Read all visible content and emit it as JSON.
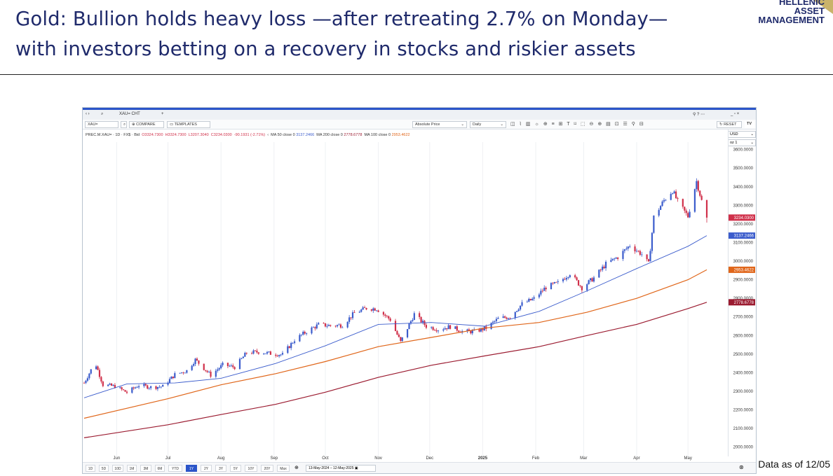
{
  "slide": {
    "title_line1": "Gold: Bullion holds heavy loss —after retreating 2.7% on Monday—",
    "title_line2": "with investors betting on a recovery in stocks and riskier assets",
    "logo_line1": "HELLENIC",
    "logo_line2": "ASSET",
    "logo_line3": "MANAGEMENT",
    "data_note": "Data as of 12/05"
  },
  "terminal": {
    "symbol_tab": "XAU= CHT",
    "symbol_input": "XAU=",
    "compare_label": "COMPARE",
    "templates_label": "TEMPLATES",
    "price_mode": "Absolute Price",
    "interval": "Daily",
    "reset_label": "RESET",
    "currency": "USD",
    "unit": "oz 1",
    "instrument": "PREC.M.XAU= · 1D · FX$ · Bid",
    "ohlc_o": "O3324.7300",
    "ohlc_h": "H3324.7300",
    "ohlc_l": "L3207.3040",
    "ohlc_c": "C3234.0300",
    "ohlc_chg": "-90.1931 (-2.71%)",
    "ma50_label": "MA 50 close 0",
    "ma50_value": "3137.2466",
    "ma200_label": "MA 200 close 0",
    "ma200_value": "2778.6778",
    "ma100_label": "MA 100 close 0",
    "ma100_value": "2953.4622",
    "range_buttons": [
      "1D",
      "5D",
      "10D",
      "1M",
      "3M",
      "6M",
      "YTD",
      "1Y",
      "2Y",
      "3Y",
      "5Y",
      "10Y",
      "20Y",
      "Max"
    ],
    "active_range": "1Y",
    "date_range": "13-May-2024 – 12-May-2025"
  },
  "chart_data": {
    "type": "candlestick",
    "title": "",
    "xlabel": "",
    "ylabel": "",
    "ylim": [
      1950,
      3640
    ],
    "y_ticks": [
      2000,
      2100,
      2200,
      2300,
      2400,
      2500,
      2600,
      2700,
      2800,
      2900,
      3000,
      3100,
      3200,
      3300,
      3400,
      3500,
      3600
    ],
    "y_tick_labels": [
      "2000.0000",
      "2100.0000",
      "2200.0000",
      "2300.0000",
      "2400.0000",
      "2500.0000",
      "2600.0000",
      "2700.0000",
      "2800.0000",
      "2900.0000",
      "3000.0000",
      "3100.0000",
      "3200.0000",
      "3300.0000",
      "3400.0000",
      "3500.0000",
      "3600.0000"
    ],
    "x_range": [
      "2024-05-13",
      "2025-05-12"
    ],
    "month_labels": [
      {
        "label": "Jun",
        "date": "2024-06-01"
      },
      {
        "label": "Jul",
        "date": "2024-07-01"
      },
      {
        "label": "Aug",
        "date": "2024-08-01"
      },
      {
        "label": "Sep",
        "date": "2024-09-01"
      },
      {
        "label": "Oct",
        "date": "2024-10-01"
      },
      {
        "label": "Nov",
        "date": "2024-11-01"
      },
      {
        "label": "Dec",
        "date": "2024-12-01"
      },
      {
        "label": "2025",
        "date": "2025-01-01"
      },
      {
        "label": "Feb",
        "date": "2025-02-01"
      },
      {
        "label": "Mar",
        "date": "2025-03-01"
      },
      {
        "label": "Apr",
        "date": "2025-04-01"
      },
      {
        "label": "May",
        "date": "2025-05-01"
      }
    ],
    "close": [
      {
        "date": "2024-05-13",
        "value": 2345
      },
      {
        "date": "2024-05-17",
        "value": 2415
      },
      {
        "date": "2024-05-20",
        "value": 2440
      },
      {
        "date": "2024-05-24",
        "value": 2335
      },
      {
        "date": "2024-05-31",
        "value": 2327
      },
      {
        "date": "2024-06-07",
        "value": 2294
      },
      {
        "date": "2024-06-14",
        "value": 2333
      },
      {
        "date": "2024-06-21",
        "value": 2322
      },
      {
        "date": "2024-06-28",
        "value": 2326
      },
      {
        "date": "2024-07-05",
        "value": 2390
      },
      {
        "date": "2024-07-12",
        "value": 2411
      },
      {
        "date": "2024-07-17",
        "value": 2470
      },
      {
        "date": "2024-07-26",
        "value": 2387
      },
      {
        "date": "2024-08-02",
        "value": 2442
      },
      {
        "date": "2024-08-09",
        "value": 2430
      },
      {
        "date": "2024-08-16",
        "value": 2507
      },
      {
        "date": "2024-08-23",
        "value": 2512
      },
      {
        "date": "2024-08-30",
        "value": 2503
      },
      {
        "date": "2024-09-06",
        "value": 2497
      },
      {
        "date": "2024-09-13",
        "value": 2577
      },
      {
        "date": "2024-09-20",
        "value": 2621
      },
      {
        "date": "2024-09-27",
        "value": 2658
      },
      {
        "date": "2024-10-04",
        "value": 2653
      },
      {
        "date": "2024-10-11",
        "value": 2656
      },
      {
        "date": "2024-10-18",
        "value": 2721
      },
      {
        "date": "2024-10-25",
        "value": 2747
      },
      {
        "date": "2024-10-31",
        "value": 2744
      },
      {
        "date": "2024-11-08",
        "value": 2685
      },
      {
        "date": "2024-11-14",
        "value": 2565
      },
      {
        "date": "2024-11-22",
        "value": 2715
      },
      {
        "date": "2024-11-29",
        "value": 2650
      },
      {
        "date": "2024-12-06",
        "value": 2633
      },
      {
        "date": "2024-12-13",
        "value": 2648
      },
      {
        "date": "2024-12-20",
        "value": 2622
      },
      {
        "date": "2024-12-27",
        "value": 2621
      },
      {
        "date": "2025-01-03",
        "value": 2640
      },
      {
        "date": "2025-01-10",
        "value": 2690
      },
      {
        "date": "2025-01-17",
        "value": 2702
      },
      {
        "date": "2025-01-24",
        "value": 2770
      },
      {
        "date": "2025-01-31",
        "value": 2798
      },
      {
        "date": "2025-02-07",
        "value": 2860
      },
      {
        "date": "2025-02-14",
        "value": 2882
      },
      {
        "date": "2025-02-21",
        "value": 2935
      },
      {
        "date": "2025-02-28",
        "value": 2857
      },
      {
        "date": "2025-03-07",
        "value": 2910
      },
      {
        "date": "2025-03-14",
        "value": 2984
      },
      {
        "date": "2025-03-21",
        "value": 3022
      },
      {
        "date": "2025-03-28",
        "value": 3085
      },
      {
        "date": "2025-04-04",
        "value": 3037
      },
      {
        "date": "2025-04-08",
        "value": 2985
      },
      {
        "date": "2025-04-11",
        "value": 3237
      },
      {
        "date": "2025-04-17",
        "value": 3327
      },
      {
        "date": "2025-04-22",
        "value": 3380
      },
      {
        "date": "2025-04-25",
        "value": 3319
      },
      {
        "date": "2025-05-01",
        "value": 3240
      },
      {
        "date": "2025-05-06",
        "value": 3430
      },
      {
        "date": "2025-05-09",
        "value": 3324
      },
      {
        "date": "2025-05-12",
        "value": 3234
      }
    ],
    "last_close": 3234.03,
    "last_high": 3324.73,
    "last_low": 3207.304,
    "series": [
      {
        "name": "MA 50 close 0",
        "color": "#3b5ccc",
        "values": [
          {
            "date": "2024-05-13",
            "value": 2265
          },
          {
            "date": "2024-06-07",
            "value": 2340
          },
          {
            "date": "2024-07-05",
            "value": 2345
          },
          {
            "date": "2024-08-01",
            "value": 2370
          },
          {
            "date": "2024-09-02",
            "value": 2450
          },
          {
            "date": "2024-10-01",
            "value": 2545
          },
          {
            "date": "2024-11-01",
            "value": 2660
          },
          {
            "date": "2024-12-02",
            "value": 2670
          },
          {
            "date": "2025-01-02",
            "value": 2650
          },
          {
            "date": "2025-02-03",
            "value": 2730
          },
          {
            "date": "2025-03-03",
            "value": 2840
          },
          {
            "date": "2025-04-01",
            "value": 2960
          },
          {
            "date": "2025-05-01",
            "value": 3080
          },
          {
            "date": "2025-05-12",
            "value": 3137.2466
          }
        ]
      },
      {
        "name": "MA 100 close 0",
        "color": "#e0661a",
        "values": [
          {
            "date": "2024-05-13",
            "value": 2155
          },
          {
            "date": "2024-07-01",
            "value": 2260
          },
          {
            "date": "2024-08-01",
            "value": 2335
          },
          {
            "date": "2024-09-02",
            "value": 2395
          },
          {
            "date": "2024-10-01",
            "value": 2460
          },
          {
            "date": "2024-11-01",
            "value": 2540
          },
          {
            "date": "2024-12-02",
            "value": 2590
          },
          {
            "date": "2025-01-02",
            "value": 2640
          },
          {
            "date": "2025-02-03",
            "value": 2670
          },
          {
            "date": "2025-03-03",
            "value": 2725
          },
          {
            "date": "2025-04-01",
            "value": 2800
          },
          {
            "date": "2025-05-01",
            "value": 2900
          },
          {
            "date": "2025-05-12",
            "value": 2953.4622
          }
        ]
      },
      {
        "name": "MA 200 close 0",
        "color": "#9b1b30",
        "values": [
          {
            "date": "2024-05-13",
            "value": 2050
          },
          {
            "date": "2024-07-01",
            "value": 2120
          },
          {
            "date": "2024-08-01",
            "value": 2175
          },
          {
            "date": "2024-09-02",
            "value": 2230
          },
          {
            "date": "2024-10-01",
            "value": 2295
          },
          {
            "date": "2024-11-01",
            "value": 2375
          },
          {
            "date": "2024-12-02",
            "value": 2440
          },
          {
            "date": "2025-01-02",
            "value": 2490
          },
          {
            "date": "2025-02-03",
            "value": 2540
          },
          {
            "date": "2025-03-03",
            "value": 2600
          },
          {
            "date": "2025-04-01",
            "value": 2660
          },
          {
            "date": "2025-05-01",
            "value": 2745
          },
          {
            "date": "2025-05-12",
            "value": 2778.6778
          }
        ]
      }
    ],
    "price_tags": [
      {
        "label": "3234.0300",
        "value": 3234.03,
        "color": "#d0304a"
      },
      {
        "label": "3137.2466",
        "value": 3137.2466,
        "color": "#3b5ccc"
      },
      {
        "label": "2953.4622",
        "value": 2953.4622,
        "color": "#e0661a"
      },
      {
        "label": "2778.6778",
        "value": 2778.6778,
        "color": "#9b1b30"
      }
    ],
    "up_color": "#3b5ccc",
    "down_color": "#d0304a",
    "grid": "vertical"
  }
}
